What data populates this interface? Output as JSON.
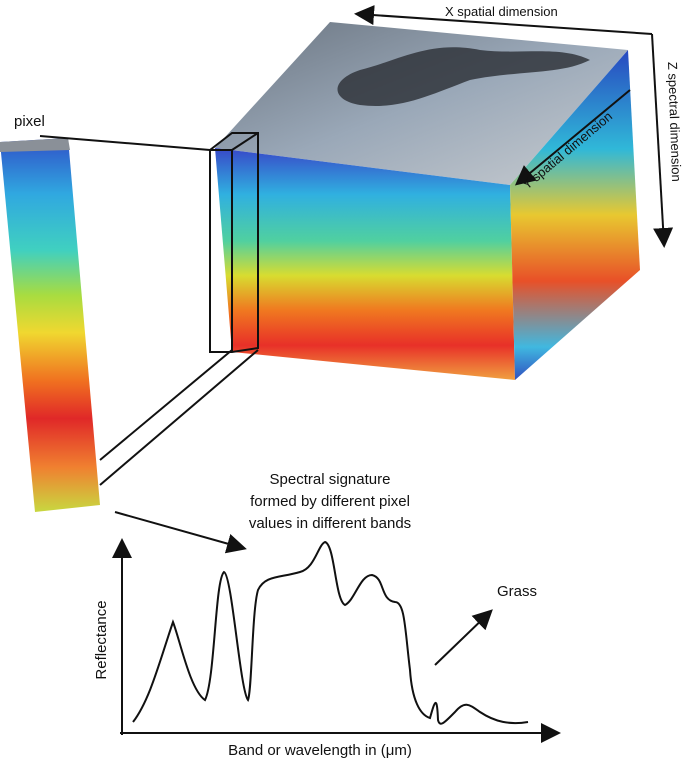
{
  "labels": {
    "x_dimension": "X spatial dimension",
    "y_dimension": "Y spatial dimension",
    "z_dimension": "Z spectral dimension",
    "pixel": "pixel",
    "signature": [
      "Spectral signature",
      "formed by different pixel",
      "values in different bands"
    ],
    "grass": "Grass",
    "y_axis": "Reflectance",
    "x_axis": "Band or wavelength in (μm)"
  }
}
